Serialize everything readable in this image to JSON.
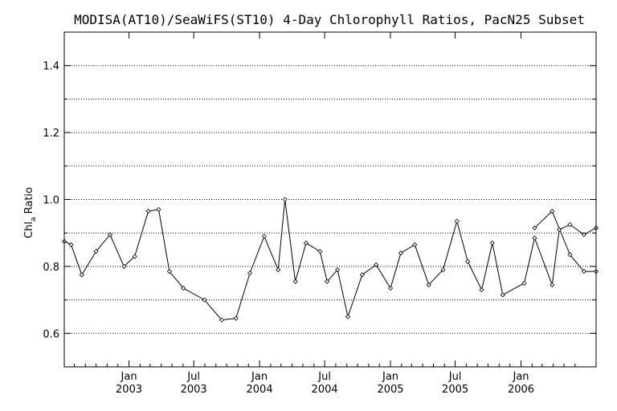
{
  "chart_data": {
    "type": "line",
    "title": "MODISA(AT10)/SeaWiFS(ST10) 4-Day Chlorophyll Ratios, PacN25 Subset",
    "ylabel_main": "Chl",
    "ylabel_sub": "a",
    "ylabel_tail": " Ratio",
    "xlabel": "",
    "ylim": [
      0.5,
      1.5
    ],
    "xlim": [
      "2002-07-04",
      "2006-07-30"
    ],
    "yticks": [
      0.6,
      0.8,
      1.0,
      1.2,
      1.4
    ],
    "ytick_labels": [
      "0.6",
      "0.8",
      "1.0",
      "1.2",
      "1.4"
    ],
    "y_minor_gridlines": [
      0.7,
      0.9,
      1.1,
      1.3
    ],
    "grid": "horizontal dotted",
    "line_color": "#000000",
    "xticks": [
      {
        "date": "2003-01-01",
        "line1": "Jan",
        "line2": "2003"
      },
      {
        "date": "2003-07-01",
        "line1": "Jul",
        "line2": "2003"
      },
      {
        "date": "2004-01-01",
        "line1": "Jan",
        "line2": "2004"
      },
      {
        "date": "2004-07-01",
        "line1": "Jul",
        "line2": "2004"
      },
      {
        "date": "2005-01-01",
        "line1": "Jan",
        "line2": "2005"
      },
      {
        "date": "2005-07-01",
        "line1": "Jul",
        "line2": "2005"
      },
      {
        "date": "2006-01-01",
        "line1": "Jan",
        "line2": "2006"
      }
    ],
    "series": [
      {
        "x": [
          "2002-07-04",
          "2002-07-23",
          "2002-08-22",
          "2002-10-01",
          "2002-11-09",
          "2002-12-18",
          "2003-01-17",
          "2003-02-24",
          "2003-03-25",
          "2003-04-24",
          "2003-06-02",
          "2003-07-31",
          "2003-09-17",
          "2003-10-27",
          "2003-12-05",
          "2004-01-14",
          "2004-02-22",
          "2004-03-12",
          "2004-04-10",
          "2004-05-10",
          "2004-06-18",
          "2004-07-08",
          "2004-08-06",
          "2004-09-04",
          "2004-10-14",
          "2004-11-22",
          "2005-01-01",
          "2005-01-30",
          "2005-03-10",
          "2005-04-18",
          "2005-05-28",
          "2005-07-06",
          "2005-08-05",
          "2005-09-13",
          "2005-10-13",
          "2005-11-11",
          "2006-01-10",
          "2006-02-08",
          "2006-03-29",
          "2006-04-18",
          "2006-05-18",
          "2006-06-26",
          "2006-07-30"
        ],
        "y": [
          0.875,
          0.865,
          0.775,
          0.845,
          0.895,
          0.8,
          0.83,
          0.965,
          0.97,
          0.785,
          0.735,
          0.7,
          0.64,
          0.645,
          0.78,
          0.89,
          0.79,
          1.0,
          0.755,
          0.87,
          0.845,
          0.755,
          0.79,
          0.65,
          0.775,
          0.805,
          0.735,
          0.84,
          0.865,
          0.745,
          0.79,
          0.935,
          0.815,
          0.73,
          0.87,
          0.715,
          0.75,
          0.885,
          0.745,
          0.91,
          0.925,
          0.895,
          0.915
        ]
      }
    ],
    "series_extra": [
      {
        "x": [
          "2006-02-08",
          "2006-03-29",
          "2006-05-18",
          "2006-06-26",
          "2006-07-30"
        ],
        "y": [
          0.915,
          0.965,
          0.835,
          0.785,
          0.785
        ]
      }
    ]
  }
}
